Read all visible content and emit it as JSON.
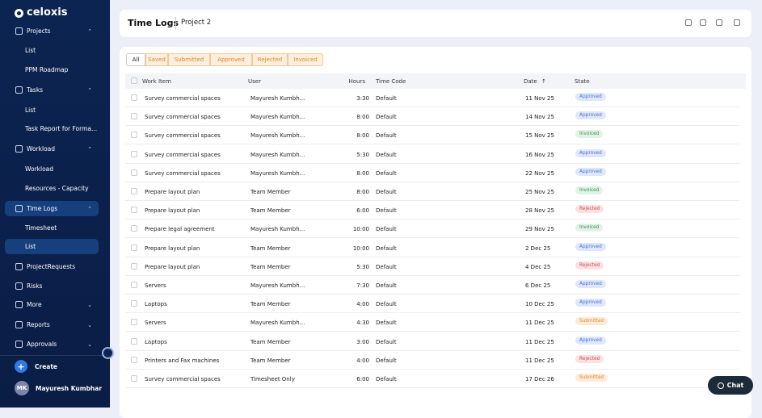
{
  "sidebar": {
    "brand": "celoxis",
    "nav": [
      {
        "label": "Projects",
        "items": [
          "List",
          "PPM Roadmap"
        ]
      },
      {
        "label": "Tasks",
        "items": [
          "List",
          "Task Report for Forma..."
        ]
      },
      {
        "label": "Workload",
        "items": [
          "Workload",
          "Resources - Capacity"
        ]
      },
      {
        "label": "Time Logs",
        "items": [
          "Timesheet",
          "List"
        ]
      },
      {
        "label": "ProjectRequests",
        "items": []
      },
      {
        "label": "Risks",
        "items": []
      },
      {
        "label": "More",
        "items": []
      },
      {
        "label": "Reports",
        "items": []
      },
      {
        "label": "Approvals",
        "items": []
      }
    ],
    "create": "Create",
    "user": {
      "initials": "MK",
      "name": "Mayuresh Kumbhar"
    }
  },
  "header": {
    "title": "Time Logs",
    "project": "Project 2"
  },
  "filters": [
    "All",
    "Saved",
    "Submitted",
    "Approved",
    "Rejected",
    "Invoiced"
  ],
  "table": {
    "columns": [
      "Work Item",
      "User",
      "Hours",
      "Time Code",
      "Date",
      "State"
    ],
    "rows": [
      [
        "Survey commercial spaces",
        "Mayuresh Kumbh...",
        "3:30",
        "Default",
        "11 Nov 25",
        "Approved"
      ],
      [
        "Survey commercial spaces",
        "Mayuresh Kumbh...",
        "8:00",
        "Default",
        "14 Nov 25",
        "Approved"
      ],
      [
        "Survey commercial spaces",
        "Mayuresh Kumbh...",
        "8:00",
        "Default",
        "15 Nov 25",
        "Invoiced"
      ],
      [
        "Survey commercial spaces",
        "Mayuresh Kumbh...",
        "5:30",
        "Default",
        "16 Nov 25",
        "Approved"
      ],
      [
        "Survey commercial spaces",
        "Mayuresh Kumbh...",
        "8:00",
        "Default",
        "22 Nov 25",
        "Approved"
      ],
      [
        "Prepare layout plan",
        "Team Member",
        "8:00",
        "Default",
        "25 Nov 25",
        "Invoiced"
      ],
      [
        "Prepare layout plan",
        "Team Member",
        "6:00",
        "Default",
        "28 Nov 25",
        "Rejected"
      ],
      [
        "Prepare legal agreement",
        "Mayuresh Kumbh...",
        "10:00",
        "Default",
        "29 Nov 25",
        "Invoiced"
      ],
      [
        "Prepare layout plan",
        "Team Member",
        "10:00",
        "Default",
        "2 Dec 25",
        "Approved"
      ],
      [
        "Prepare layout plan",
        "Team Member",
        "5:30",
        "Default",
        "4 Dec 25",
        "Rejected"
      ],
      [
        "Servers",
        "Mayuresh Kumbh...",
        "7:30",
        "Default",
        "6 Dec 25",
        "Approved"
      ],
      [
        "Laptops",
        "Team Member",
        "4:00",
        "Default",
        "10 Dec 25",
        "Approved"
      ],
      [
        "Servers",
        "Mayuresh Kumbh...",
        "4:30",
        "Default",
        "11 Dec 25",
        "Submitted"
      ],
      [
        "Laptops",
        "Team Member",
        "3:00",
        "Default",
        "11 Dec 25",
        "Approved"
      ],
      [
        "Printers and Fax machines",
        "Team Member",
        "4:00",
        "Default",
        "11 Dec 25",
        "Rejected"
      ],
      [
        "Survey commercial spaces",
        "Timesheet Only",
        "6:00",
        "Default",
        "17 Dec 26",
        "Submitted"
      ]
    ]
  },
  "chat": "Chat"
}
